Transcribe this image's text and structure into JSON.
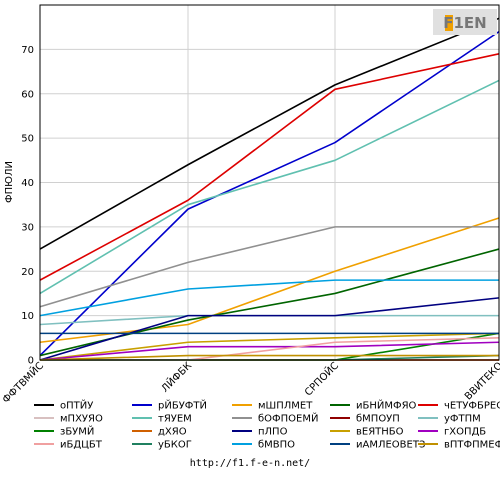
{
  "logo_text": "F1EN",
  "footer_url": "http://f1.f-e-n.net/",
  "chart_data": {
    "type": "line",
    "ylabel": "ФПЮЛИ",
    "xlabel": "",
    "ylim": [
      0,
      80
    ],
    "yticks": [
      0,
      10,
      20,
      30,
      40,
      50,
      60,
      70
    ],
    "grid": "horizontal",
    "categories": [
      "ФФТВМЙС",
      "ЛЙФБК",
      "СРПОЙС",
      "ВВИТЕКО"
    ],
    "series": [
      {
        "name": "оПТЙУ",
        "color": "#000000",
        "values": [
          25,
          44,
          62,
          77
        ]
      },
      {
        "name": "рЙБУФТЙ",
        "color": "#0000cc",
        "values": [
          1,
          34,
          49,
          74
        ]
      },
      {
        "name": "мШПЛМЕТ",
        "color": "#f0a000",
        "values": [
          4,
          8,
          20,
          32
        ]
      },
      {
        "name": "иБНЙМФЯО",
        "color": "#006400",
        "values": [
          1,
          9,
          15,
          25
        ]
      },
      {
        "name": "чЕТУФБРЕО",
        "color": "#dd0000",
        "values": [
          18,
          36,
          61,
          69
        ]
      },
      {
        "name": "мПХУЯО",
        "color": "#d8c0c0",
        "values": [
          0,
          0,
          0,
          0
        ]
      },
      {
        "name": "тЯУЕМ",
        "color": "#60c0b0",
        "values": [
          15,
          35,
          45,
          63
        ]
      },
      {
        "name": "бОФПОЕМЙ",
        "color": "#909090",
        "values": [
          12,
          22,
          30,
          30
        ]
      },
      {
        "name": "бМПОУП",
        "color": "#900000",
        "values": [
          0,
          0,
          0,
          0
        ]
      },
      {
        "name": "уФТПМ",
        "color": "#80c0c0",
        "values": [
          8,
          10,
          10,
          10
        ]
      },
      {
        "name": "зБУМЙ",
        "color": "#008000",
        "values": [
          0,
          0,
          0,
          6
        ]
      },
      {
        "name": "дХЯО",
        "color": "#d06000",
        "values": [
          0,
          0,
          0,
          0
        ]
      },
      {
        "name": "пЛПО",
        "color": "#000080",
        "values": [
          0,
          10,
          10,
          14
        ]
      },
      {
        "name": "вЕЯТНБО",
        "color": "#c8a000",
        "values": [
          0,
          4,
          5,
          6
        ]
      },
      {
        "name": "гХОПДБ",
        "color": "#a000c0",
        "values": [
          0,
          3,
          3,
          4
        ]
      },
      {
        "name": "иБДЦБТ",
        "color": "#f0a0a0",
        "values": [
          0,
          0,
          4,
          5
        ]
      },
      {
        "name": "уБКОГ",
        "color": "#208060",
        "values": [
          0,
          0,
          0,
          1
        ]
      },
      {
        "name": "бМВПО",
        "color": "#00a0e0",
        "values": [
          10,
          16,
          18,
          18
        ]
      },
      {
        "name": "иАМЛЕОВЕТЗ",
        "color": "#004080",
        "values": [
          6,
          6,
          6,
          6
        ]
      },
      {
        "name": "вПТФПМЕФП",
        "color": "#c09000",
        "values": [
          0,
          1,
          1,
          1
        ]
      }
    ]
  }
}
